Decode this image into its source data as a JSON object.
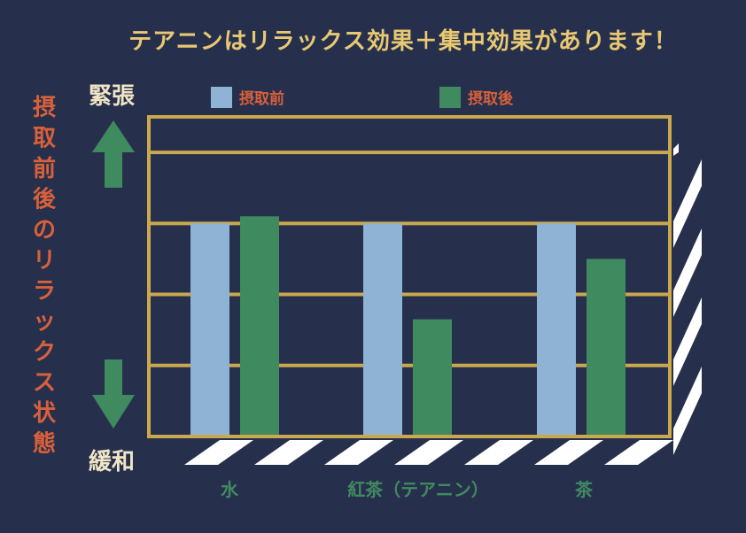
{
  "colors": {
    "background": "#26304d",
    "title": "#e8c872",
    "side_label": "#d8603a",
    "frame": "#c9a84e",
    "before": "#8fb3d4",
    "after": "#3f8a5f",
    "arrow": "#3f8a5f",
    "axis_word": "#f0e6c6",
    "category": "#3f8a5f",
    "stripe": "#ffffff"
  },
  "chart_data": {
    "type": "bar",
    "title": "テアニンはリラックス効果＋集中効果があります！",
    "ylabel": "摂取前後のリラックス状態",
    "y_top_label": "緊張",
    "y_bottom_label": "緩和",
    "categories": [
      "水",
      "紅茶（テアニン）",
      "茶"
    ],
    "series": [
      {
        "name": "摂取前",
        "color": "#8fb3d4",
        "values": [
          3,
          3,
          3
        ]
      },
      {
        "name": "摂取後",
        "color": "#3f8a5f",
        "values": [
          3.1,
          1.65,
          2.5
        ]
      }
    ],
    "ylim": [
      0,
      4.5
    ],
    "grid": true,
    "legend": "top"
  }
}
